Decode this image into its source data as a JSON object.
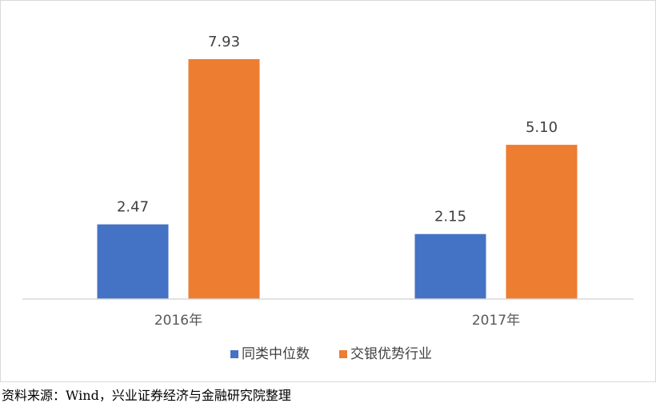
{
  "chart_data": {
    "type": "bar",
    "title": "",
    "xlabel": "",
    "ylabel": "",
    "categories": [
      "2016年",
      "2017年"
    ],
    "series": [
      {
        "name": "同类中位数",
        "values": [
          2.47,
          2.15
        ],
        "labels": [
          "2.47",
          "2.15"
        ],
        "color": "#4472C4"
      },
      {
        "name": "交银优势行业",
        "values": [
          7.93,
          5.1
        ],
        "labels": [
          "7.93",
          "5.10"
        ],
        "color": "#ED7D31"
      }
    ],
    "ylim": [
      0,
      8.5
    ],
    "grid": false,
    "legend_position": "bottom"
  },
  "source_note": "资料来源：Wind，兴业证券经济与金融研究院整理"
}
